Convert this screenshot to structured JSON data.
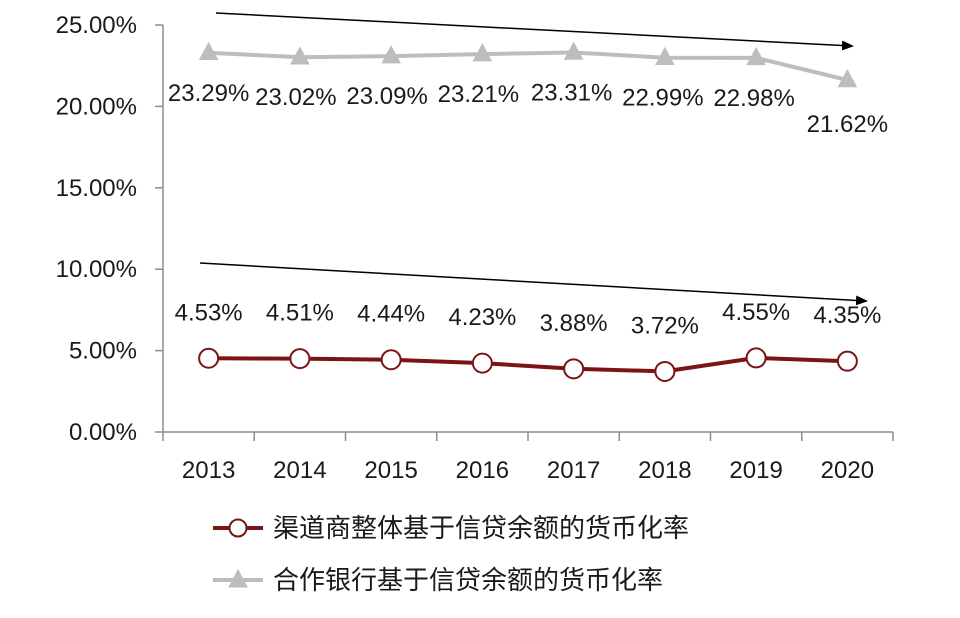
{
  "chart_data": {
    "type": "line",
    "categories": [
      "2013",
      "2014",
      "2015",
      "2016",
      "2017",
      "2018",
      "2019",
      "2020"
    ],
    "ylim": [
      0,
      25
    ],
    "yticks": [
      0,
      5,
      10,
      15,
      20,
      25
    ],
    "ytick_labels": [
      "0.00%",
      "5.00%",
      "10.00%",
      "15.00%",
      "20.00%",
      "25.00%"
    ],
    "grid": false,
    "legend_position": "bottom",
    "series": [
      {
        "name": "渠道商整体基于信贷余额的货币化率",
        "values": [
          4.53,
          4.51,
          4.44,
          4.23,
          3.88,
          3.72,
          4.55,
          4.35
        ],
        "labels": [
          "4.53%",
          "4.51%",
          "4.44%",
          "4.23%",
          "3.88%",
          "3.72%",
          "4.55%",
          "4.35%"
        ],
        "color": "#7b1416",
        "marker": "circle"
      },
      {
        "name": "合作银行基于信贷余额的货币化率",
        "values": [
          23.29,
          23.02,
          23.09,
          23.21,
          23.31,
          22.99,
          22.98,
          21.62
        ],
        "labels": [
          "23.29%",
          "23.02%",
          "23.09%",
          "23.21%",
          "23.31%",
          "22.99%",
          "22.98%",
          "21.62%"
        ],
        "color": "#bdbdbd",
        "marker": "triangle"
      }
    ],
    "annotations": [
      {
        "type": "trend-arrow",
        "series": "合作银行基于信贷余额的货币化率",
        "direction": "down"
      },
      {
        "type": "trend-arrow",
        "series": "渠道商整体基于信贷余额的货币化率",
        "direction": "down"
      }
    ]
  }
}
